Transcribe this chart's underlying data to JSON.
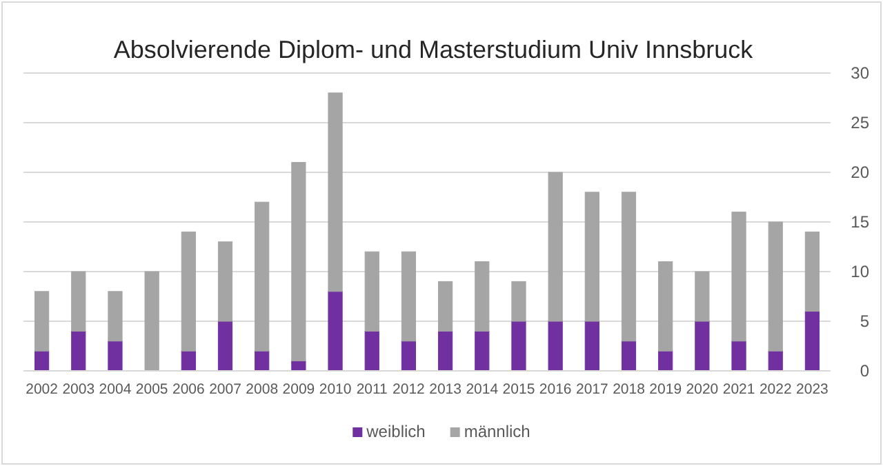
{
  "chart_data": {
    "type": "bar",
    "title": "Absolvierende Diplom- und Masterstudium Univ Innsbruck",
    "stacked": true,
    "categories": [
      "2002",
      "2003",
      "2004",
      "2005",
      "2006",
      "2007",
      "2008",
      "2009",
      "2010",
      "2011",
      "2012",
      "2013",
      "2014",
      "2015",
      "2016",
      "2017",
      "2018",
      "2019",
      "2020",
      "2021",
      "2022",
      "2023"
    ],
    "series": [
      {
        "name": "weiblich",
        "color": "#7030a0",
        "values": [
          2,
          4,
          3,
          0,
          2,
          5,
          2,
          1,
          8,
          4,
          3,
          4,
          4,
          5,
          5,
          5,
          3,
          2,
          5,
          3,
          2,
          6
        ]
      },
      {
        "name": "männlich",
        "color": "#a5a5a5",
        "values": [
          6,
          6,
          5,
          10,
          12,
          8,
          15,
          20,
          20,
          8,
          9,
          5,
          7,
          4,
          15,
          13,
          15,
          9,
          5,
          13,
          13,
          8
        ]
      }
    ],
    "ylim": [
      0,
      30
    ],
    "yticks": [
      0,
      5,
      10,
      15,
      20,
      25,
      30
    ],
    "grid": "y",
    "legend": "bottom"
  }
}
